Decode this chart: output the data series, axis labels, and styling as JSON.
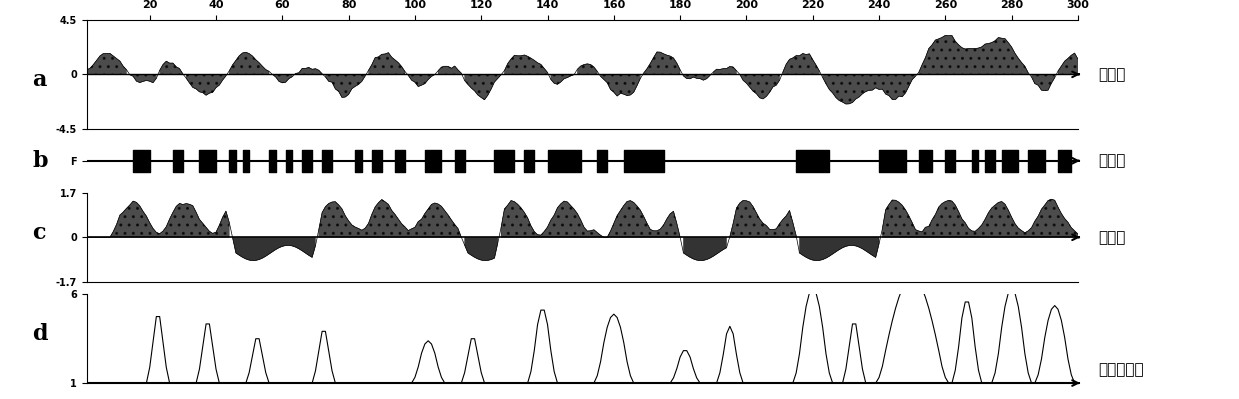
{
  "title": "",
  "x_ticks": [
    20,
    40,
    60,
    80,
    100,
    120,
    140,
    160,
    180,
    200,
    220,
    240,
    260,
    280,
    300
  ],
  "x_range": [
    1,
    300
  ],
  "panel_labels": [
    "a",
    "b",
    "c",
    "d"
  ],
  "panel_ylabels": [
    "亲水性",
    "柔韧性",
    "抗原性",
    "表面可及性"
  ],
  "panel_a_ylim": [
    -4.5,
    4.5
  ],
  "panel_a_yticks": [
    -4.5,
    0,
    4.5
  ],
  "panel_c_ylim": [
    -1.7,
    1.7
  ],
  "panel_c_yticks": [
    -1.7,
    0,
    1.7
  ],
  "panel_d_ylim": [
    1,
    6
  ],
  "panel_d_yticks": [
    1,
    6
  ],
  "background_color": "#ffffff"
}
